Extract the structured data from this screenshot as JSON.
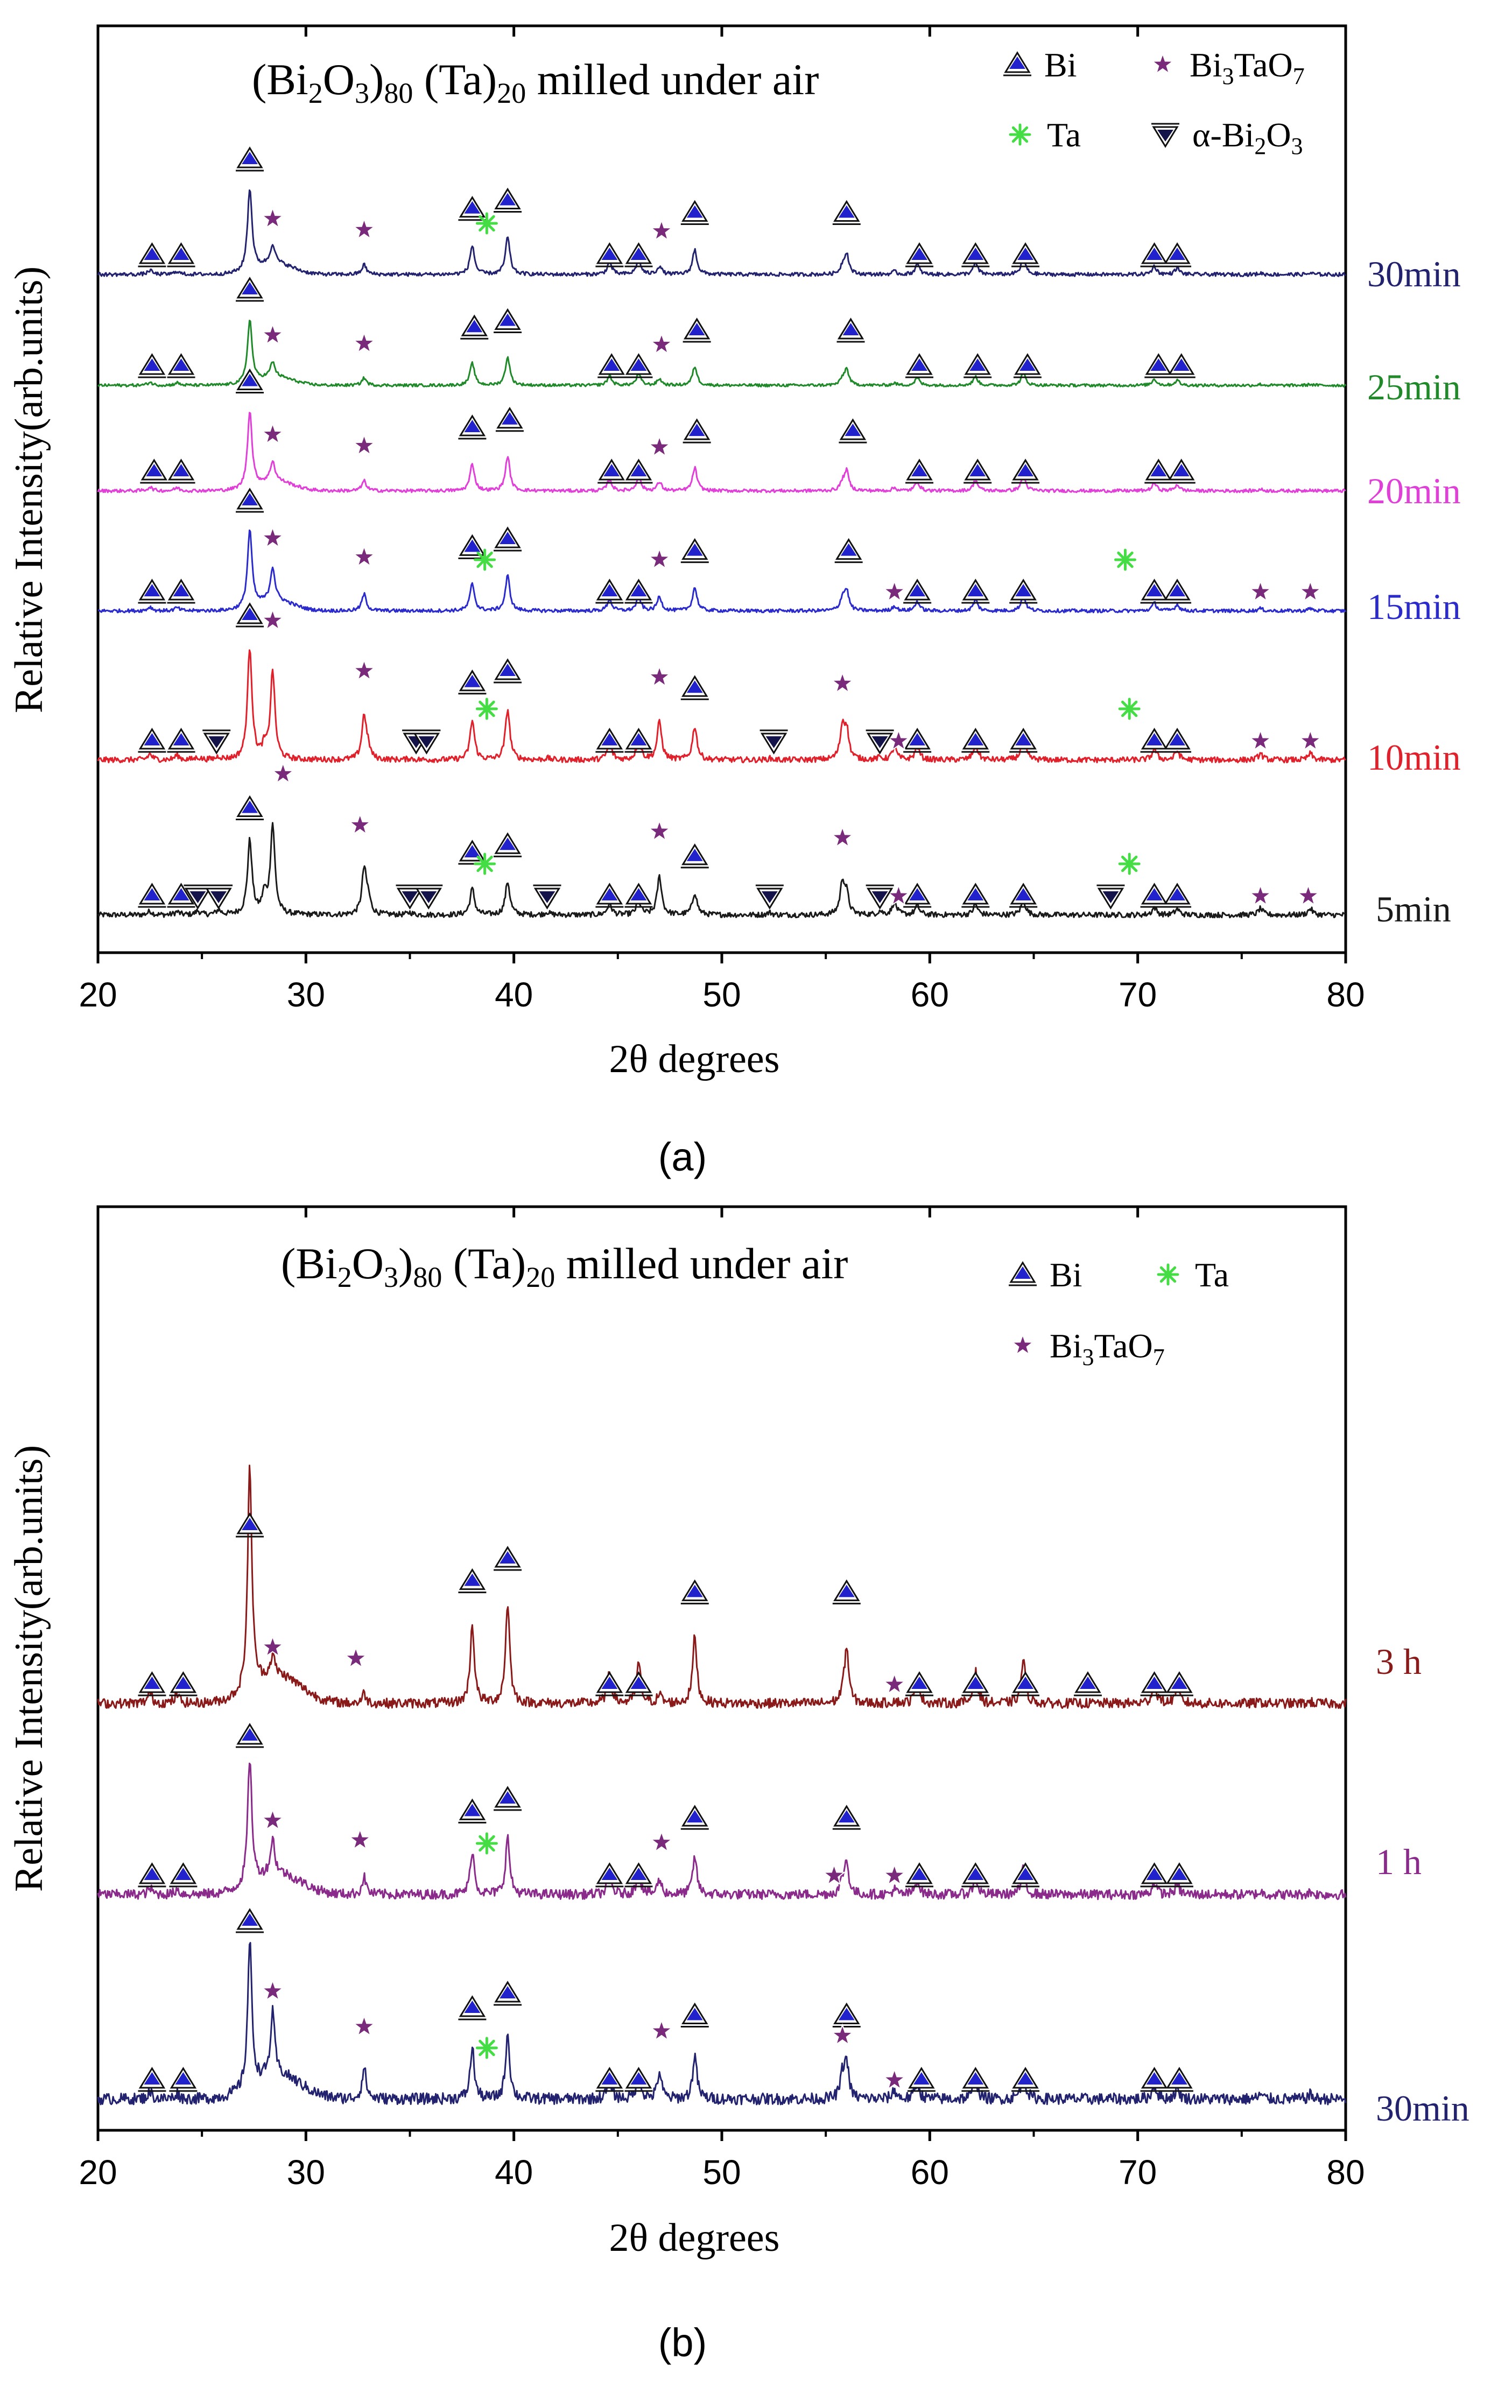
{
  "figure_labels": {
    "a": "(a)",
    "b": "(b)"
  },
  "chart_data": [
    {
      "id": "a",
      "type": "line",
      "title_parts": {
        "pre": "(Bi",
        "sub1": "2",
        "mid1": "O",
        "sub2": "3",
        "mid2": ")",
        "sub3": "80",
        "mid3": " (Ta)",
        "sub4": "20",
        "post": " milled under air"
      },
      "xlabel": "2θ degrees",
      "ylabel": "Relative Intensity(arb.units)",
      "xlim": [
        20,
        80
      ],
      "xticks": [
        20,
        30,
        40,
        50,
        60,
        70,
        80
      ],
      "yticks_shown": false,
      "legend": [
        {
          "marker": "up",
          "label": "Bi"
        },
        {
          "marker": "star",
          "label": "Bi3TaO7",
          "rich": {
            "pre": "Bi",
            "sub": "3",
            "post": "TaO",
            "sub2": "7"
          }
        },
        {
          "marker": "ast",
          "label": "Ta"
        },
        {
          "marker": "down",
          "label": "α-Bi2O3",
          "rich": {
            "pre": "α-Bi",
            "sub": "2",
            "post": "O",
            "sub2": "3"
          }
        }
      ],
      "phases": {
        "Bi": [
          22.6,
          24.0,
          27.3,
          38.0,
          39.7,
          44.6,
          46.0,
          48.7,
          56.0,
          59.4,
          62.2,
          64.5,
          70.8,
          71.9
        ],
        "Bi3TaO7": [
          28.4,
          32.8,
          47.0,
          55.8,
          58.3,
          75.9,
          78.3
        ],
        "Ta": [
          38.5,
          69.6
        ],
        "alpha_Bi2O3": [
          24.8,
          25.8,
          35.0,
          35.8,
          41.6,
          52.3,
          57.6,
          68.7
        ]
      },
      "series": [
        {
          "name": "5min",
          "color": "#1a1a1a",
          "bi": [
            22.6,
            24.0,
            27.3,
            38.0,
            39.7,
            44.6,
            46.0,
            48.7,
            59.4,
            62.2,
            64.5,
            70.8,
            71.9
          ],
          "bt": [
            28.9,
            32.6,
            47.0,
            55.8,
            58.5,
            75.9,
            78.2
          ],
          "ta": [
            38.6,
            69.6
          ],
          "ab": [
            24.8,
            25.8,
            35.0,
            35.9,
            41.6,
            52.3,
            57.6,
            68.7
          ]
        },
        {
          "name": "10min",
          "color": "#e0202a",
          "bi": [
            22.6,
            24.0,
            27.3,
            38.0,
            39.7,
            44.6,
            46.0,
            48.7,
            59.4,
            62.2,
            64.5,
            70.8,
            71.9
          ],
          "bt": [
            28.4,
            32.8,
            47.0,
            55.8,
            58.5,
            75.9,
            78.3
          ],
          "ta": [
            38.7,
            69.6
          ],
          "ab": [
            25.7,
            35.3,
            35.8,
            52.5,
            57.6
          ]
        },
        {
          "name": "15min",
          "color": "#2b2bcc",
          "bi": [
            22.6,
            24.0,
            27.3,
            38.0,
            39.7,
            44.6,
            46.0,
            48.7,
            56.1,
            59.4,
            62.2,
            64.5,
            70.8,
            71.9
          ],
          "bt": [
            28.4,
            32.8,
            47.0,
            58.3,
            75.9,
            78.3
          ],
          "ta": [
            38.6,
            69.4
          ],
          "ab": []
        },
        {
          "name": "20min",
          "color": "#e040d8",
          "bi": [
            22.7,
            24.0,
            27.3,
            38.0,
            39.8,
            44.7,
            46.0,
            48.8,
            56.3,
            59.5,
            62.3,
            64.6,
            71.0,
            72.1
          ],
          "bt": [
            28.4,
            32.8,
            47.0
          ],
          "ta": [],
          "ab": []
        },
        {
          "name": "25min",
          "color": "#208a2a",
          "bi": [
            22.6,
            24.0,
            27.3,
            38.1,
            39.7,
            44.7,
            46.0,
            48.8,
            56.2,
            59.5,
            62.3,
            64.7,
            71.0,
            72.1
          ],
          "bt": [
            28.4,
            32.8,
            47.1
          ],
          "ta": [],
          "ab": []
        },
        {
          "name": "30min",
          "color": "#22226e",
          "bi": [
            22.6,
            24.0,
            27.3,
            38.0,
            39.7,
            44.6,
            46.0,
            48.7,
            56.0,
            59.5,
            62.2,
            64.6,
            70.8,
            71.9
          ],
          "bt": [
            28.4,
            32.8,
            47.1
          ],
          "ta": [
            38.7
          ],
          "ab": []
        }
      ]
    },
    {
      "id": "b",
      "type": "line",
      "title_parts": {
        "pre": "(Bi",
        "sub1": "2",
        "mid1": "O",
        "sub2": "3",
        "mid2": ")",
        "sub3": "80",
        "mid3": " (Ta)",
        "sub4": "20",
        "post": " milled under air"
      },
      "xlabel": "2θ degrees",
      "ylabel": "Relative Intensity(arb.units)",
      "xlim": [
        20,
        80
      ],
      "xticks": [
        20,
        30,
        40,
        50,
        60,
        70,
        80
      ],
      "yticks_shown": false,
      "legend": [
        {
          "marker": "up",
          "label": "Bi"
        },
        {
          "marker": "ast",
          "label": "Ta"
        },
        {
          "marker": "star",
          "label": "Bi3TaO7",
          "rich": {
            "pre": "Bi",
            "sub": "3",
            "post": "TaO",
            "sub2": "7"
          }
        }
      ],
      "series": [
        {
          "name": "30min",
          "color": "#22226e",
          "bi": [
            22.6,
            24.1,
            27.3,
            38.0,
            39.7,
            44.6,
            46.0,
            48.7,
            56.0,
            59.6,
            62.2,
            64.6,
            70.8,
            72.0
          ],
          "bt": [
            28.4,
            32.8,
            47.1,
            55.8,
            58.3
          ],
          "ta": [
            38.7
          ]
        },
        {
          "name": "1 h",
          "color": "#8a2a8a",
          "bi": [
            22.6,
            24.1,
            27.3,
            38.0,
            39.7,
            44.6,
            46.0,
            48.7,
            56.0,
            59.5,
            62.2,
            64.6,
            70.8,
            72.0
          ],
          "bt": [
            28.4,
            32.6,
            47.1,
            55.4,
            58.3
          ],
          "ta": [
            38.7
          ]
        },
        {
          "name": "3 h",
          "color": "#8a1a1a",
          "bi": [
            22.6,
            24.1,
            27.3,
            38.0,
            39.7,
            44.6,
            46.0,
            48.7,
            56.0,
            59.5,
            62.2,
            64.6,
            67.6,
            70.8,
            72.0
          ],
          "bt": [
            28.4,
            32.4,
            58.3
          ],
          "ta": []
        }
      ]
    }
  ]
}
